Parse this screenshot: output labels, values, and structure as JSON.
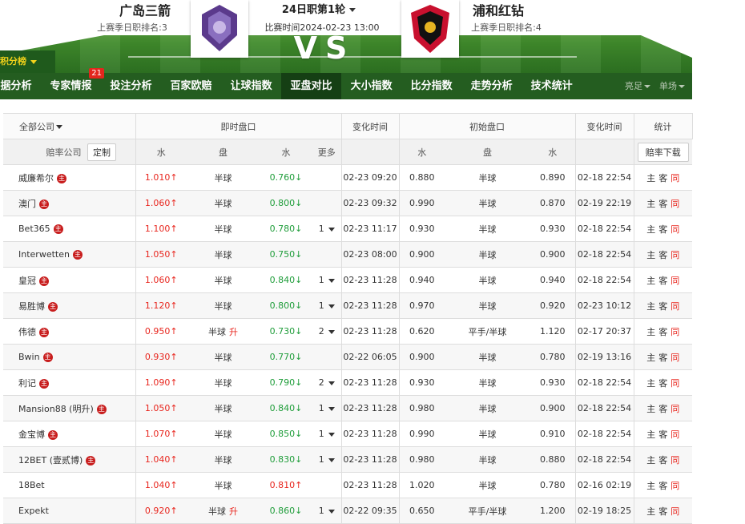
{
  "header": {
    "home_team": "广岛三箭",
    "home_rank": "上赛季日职排名:3",
    "round": "24日职第1轮",
    "match_time": "比赛时间2024-02-23 13:00",
    "vs": "VS",
    "away_team": "浦和红钻",
    "away_rank": "上赛季日职排名:4",
    "standings_tab": "积分榜"
  },
  "nav": {
    "items": [
      {
        "label": "据分析"
      },
      {
        "label": "专家情报",
        "badge": "21"
      },
      {
        "label": "投注分析"
      },
      {
        "label": "百家欧赔"
      },
      {
        "label": "让球指数"
      },
      {
        "label": "亚盘对比"
      },
      {
        "label": "大小指数"
      },
      {
        "label": "比分指数"
      },
      {
        "label": "走势分析"
      },
      {
        "label": "技术统计"
      }
    ],
    "active": 5,
    "right": [
      "亮足",
      "单场"
    ]
  },
  "table": {
    "head": {
      "company_filter": "全部公司",
      "live": "即时盘口",
      "change_time": "变化时间",
      "initial": "初始盘口",
      "stats": "统计",
      "company": "赔率公司",
      "customize": "定制",
      "water": "水",
      "line": "盘",
      "more": "更多",
      "download": "赔率下载"
    },
    "row_links": [
      "主",
      "客",
      "同"
    ],
    "row_link_colors": [
      "#333333",
      "#333333",
      "#e8261e"
    ],
    "rows": [
      {
        "company": "威廉希尔",
        "badge": "主",
        "live_home": {
          "text": "1.010↑",
          "color": "#e8261e"
        },
        "live_line": "半球",
        "live_away": {
          "text": "0.760↓",
          "color": "#1f9d3a"
        },
        "live_time": "02-23 09:20",
        "init_home": "0.880",
        "init_line": "半球",
        "init_away": "0.890",
        "init_time": "02-18 22:54"
      },
      {
        "company": "澳门",
        "badge": "主",
        "live_home": {
          "text": "1.060↑",
          "color": "#e8261e"
        },
        "live_line": "半球",
        "live_away": {
          "text": "0.800↓",
          "color": "#1f9d3a"
        },
        "live_time": "02-23 09:32",
        "init_home": "0.990",
        "init_line": "半球",
        "init_away": "0.870",
        "init_time": "02-19 22:19"
      },
      {
        "company": "Bet365",
        "badge": "主",
        "live_home": {
          "text": "1.100↑",
          "color": "#e8261e"
        },
        "live_line": "半球",
        "live_away": {
          "text": "0.780↓",
          "color": "#1f9d3a"
        },
        "more": "1",
        "live_time": "02-23 11:17",
        "init_home": "0.930",
        "init_line": "半球",
        "init_away": "0.930",
        "init_time": "02-18 22:54"
      },
      {
        "company": "Interwetten",
        "badge": "主",
        "live_home": {
          "text": "1.050↑",
          "color": "#e8261e"
        },
        "live_line": "半球",
        "live_away": {
          "text": "0.750↓",
          "color": "#1f9d3a"
        },
        "live_time": "02-23 08:00",
        "init_home": "0.900",
        "init_line": "半球",
        "init_away": "0.900",
        "init_time": "02-18 22:54"
      },
      {
        "company": "皇冠",
        "badge": "主",
        "live_home": {
          "text": "1.060↑",
          "color": "#e8261e"
        },
        "live_line": "半球",
        "live_away": {
          "text": "0.840↓",
          "color": "#1f9d3a"
        },
        "more": "1",
        "live_time": "02-23 11:28",
        "init_home": "0.940",
        "init_line": "半球",
        "init_away": "0.940",
        "init_time": "02-18 22:54"
      },
      {
        "company": "易胜博",
        "badge": "主",
        "live_home": {
          "text": "1.120↑",
          "color": "#e8261e"
        },
        "live_line": "半球",
        "live_away": {
          "text": "0.800↓",
          "color": "#1f9d3a"
        },
        "more": "1",
        "live_time": "02-23 11:28",
        "init_home": "0.970",
        "init_line": "半球",
        "init_away": "0.920",
        "init_time": "02-23 10:12"
      },
      {
        "company": "伟德",
        "badge": "主",
        "live_home": {
          "text": "0.950↑",
          "color": "#e8261e"
        },
        "live_line": "半球",
        "live_line_change": "升",
        "live_away": {
          "text": "0.730↓",
          "color": "#1f9d3a"
        },
        "more": "2",
        "live_time": "02-23 11:28",
        "init_home": "0.620",
        "init_line": "平手/半球",
        "init_away": "1.120",
        "init_time": "02-17 20:37"
      },
      {
        "company": "Bwin",
        "badge": "主",
        "live_home": {
          "text": "0.930↑",
          "color": "#e8261e"
        },
        "live_line": "半球",
        "live_away": {
          "text": "0.770↓",
          "color": "#1f9d3a"
        },
        "live_time": "02-22 06:05",
        "init_home": "0.900",
        "init_line": "半球",
        "init_away": "0.780",
        "init_time": "02-19 13:16"
      },
      {
        "company": "利记",
        "badge": "主",
        "live_home": {
          "text": "1.090↑",
          "color": "#e8261e"
        },
        "live_line": "半球",
        "live_away": {
          "text": "0.790↓",
          "color": "#1f9d3a"
        },
        "more": "2",
        "live_time": "02-23 11:28",
        "init_home": "0.930",
        "init_line": "半球",
        "init_away": "0.930",
        "init_time": "02-18 22:54"
      },
      {
        "company": "Mansion88 (明升)",
        "badge": "主",
        "live_home": {
          "text": "1.050↑",
          "color": "#e8261e"
        },
        "live_line": "半球",
        "live_away": {
          "text": "0.840↓",
          "color": "#1f9d3a"
        },
        "more": "1",
        "live_time": "02-23 11:28",
        "init_home": "0.980",
        "init_line": "半球",
        "init_away": "0.900",
        "init_time": "02-18 22:54"
      },
      {
        "company": "金宝博",
        "badge": "主",
        "live_home": {
          "text": "1.070↑",
          "color": "#e8261e"
        },
        "live_line": "半球",
        "live_away": {
          "text": "0.850↓",
          "color": "#1f9d3a"
        },
        "more": "1",
        "live_time": "02-23 11:28",
        "init_home": "0.990",
        "init_line": "半球",
        "init_away": "0.910",
        "init_time": "02-18 22:54"
      },
      {
        "company": "12BET (壹贰博)",
        "badge": "主",
        "live_home": {
          "text": "1.040↑",
          "color": "#e8261e"
        },
        "live_line": "半球",
        "live_away": {
          "text": "0.830↓",
          "color": "#1f9d3a"
        },
        "more": "1",
        "live_time": "02-23 11:28",
        "init_home": "0.980",
        "init_line": "半球",
        "init_away": "0.880",
        "init_time": "02-18 22:54"
      },
      {
        "company": "18Bet",
        "live_home": {
          "text": "1.040↑",
          "color": "#e8261e"
        },
        "live_line": "半球",
        "live_away": {
          "text": "0.810↑",
          "color": "#e8261e"
        },
        "live_time": "02-23 11:28",
        "init_home": "1.020",
        "init_line": "半球",
        "init_away": "0.780",
        "init_time": "02-16 02:19"
      },
      {
        "company": "Expekt",
        "live_home": {
          "text": "0.920↑",
          "color": "#e8261e"
        },
        "live_line": "半球",
        "live_line_change": "升",
        "live_away": {
          "text": "0.860↓",
          "color": "#1f9d3a"
        },
        "more": "1",
        "live_time": "02-22 09:35",
        "init_home": "0.650",
        "init_line": "平手/半球",
        "init_away": "1.200",
        "init_time": "02-19 18:25"
      }
    ]
  }
}
